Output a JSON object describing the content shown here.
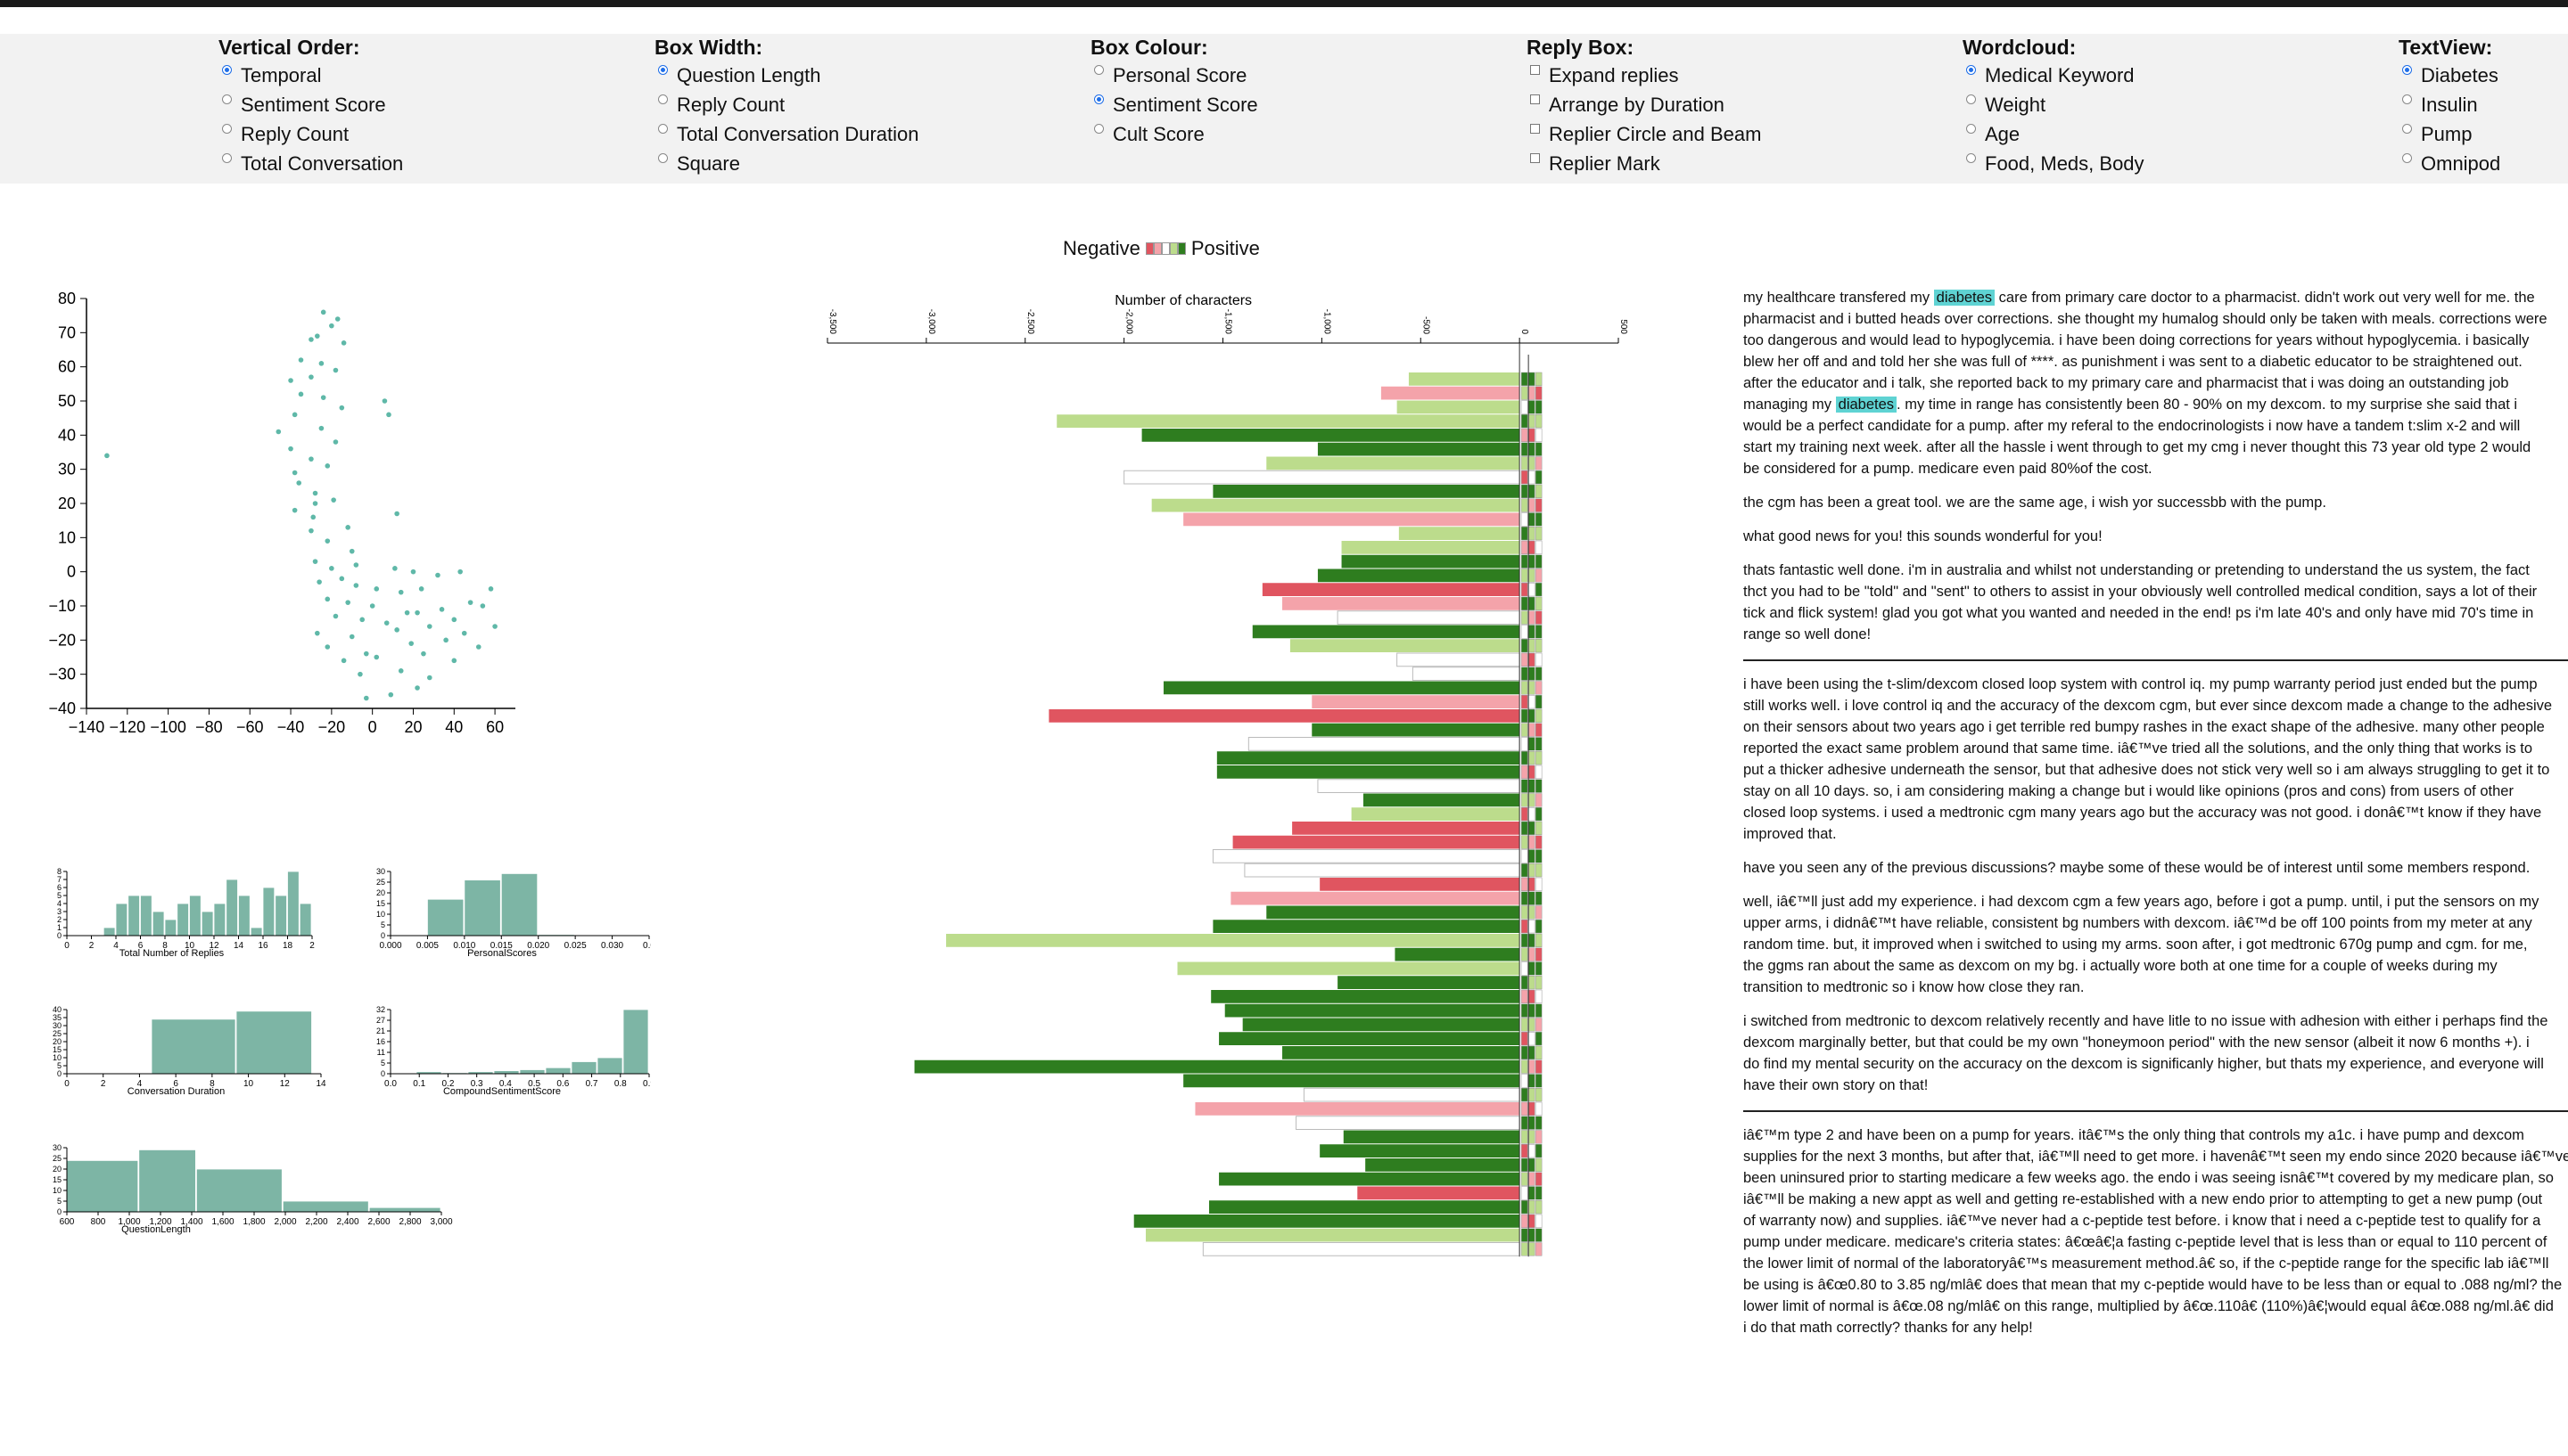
{
  "controls": [
    {
      "id": "vertical-order",
      "title": "Vertical Order:",
      "type": "radio",
      "x": 245,
      "options": [
        {
          "label": "Temporal",
          "checked": true
        },
        {
          "label": "Sentiment Score",
          "checked": false
        },
        {
          "label": "Reply Count",
          "checked": false
        },
        {
          "label": "Total Conversation",
          "checked": false
        }
      ]
    },
    {
      "id": "box-width",
      "title": "Box Width:",
      "type": "radio",
      "x": 734,
      "options": [
        {
          "label": "Question Length",
          "checked": true
        },
        {
          "label": "Reply Count",
          "checked": false
        },
        {
          "label": "Total Conversation Duration",
          "checked": false
        },
        {
          "label": "Square",
          "checked": false
        }
      ]
    },
    {
      "id": "box-colour",
      "title": "Box Colour:",
      "type": "radio",
      "x": 1223,
      "options": [
        {
          "label": "Personal Score",
          "checked": false
        },
        {
          "label": "Sentiment Score",
          "checked": true
        },
        {
          "label": "Cult Score",
          "checked": false
        }
      ]
    },
    {
      "id": "reply-box",
      "title": "Reply Box:",
      "type": "checkbox",
      "x": 1712,
      "options": [
        {
          "label": "Expand replies",
          "checked": false
        },
        {
          "label": "Arrange by Duration",
          "checked": false
        },
        {
          "label": "Replier Circle and Beam",
          "checked": false
        },
        {
          "label": "Replier Mark",
          "checked": false
        }
      ]
    },
    {
      "id": "wordcloud",
      "title": "Wordcloud:",
      "type": "radio",
      "x": 2201,
      "options": [
        {
          "label": "Medical Keyword",
          "checked": true
        },
        {
          "label": "Weight",
          "checked": false
        },
        {
          "label": "Age",
          "checked": false
        },
        {
          "label": "Food, Meds, Body",
          "checked": false
        }
      ]
    },
    {
      "id": "textview",
      "title": "TextView:",
      "type": "radio",
      "x": 2690,
      "options": [
        {
          "label": "Diabetes",
          "checked": true
        },
        {
          "label": "Insulin",
          "checked": false
        },
        {
          "label": "Pump",
          "checked": false
        },
        {
          "label": "Omnipod",
          "checked": false
        }
      ]
    }
  ],
  "legend": {
    "negative": "Negative",
    "positive": "Positive",
    "swatches": [
      "#e05560",
      "#f4a3aa",
      "#ffffff",
      "#bcdc8c",
      "#2e7d1f"
    ]
  },
  "colors": {
    "scatter": "#5fb8a8",
    "hist": "#7db5a5",
    "dark_green": "#2e7d1f",
    "light_green": "#bcdc8c",
    "red": "#e05560",
    "pink": "#f4a3aa",
    "highlight": "#5fd3d3"
  },
  "chart_data": [
    {
      "type": "scatter",
      "title": "",
      "xlim": [
        -140,
        70
      ],
      "ylim": [
        -40,
        80
      ],
      "xticks": [
        -140,
        -120,
        -100,
        -80,
        -60,
        -40,
        -20,
        0,
        20,
        40,
        60
      ],
      "yticks": [
        -40,
        -30,
        -20,
        -10,
        0,
        10,
        20,
        30,
        40,
        50,
        60,
        70,
        80
      ],
      "x": [
        -130,
        -24,
        -17,
        -20,
        -27,
        -30,
        -14,
        -35,
        -25,
        -40,
        -30,
        -18,
        -35,
        -24,
        -15,
        -46,
        -38,
        -25,
        -18,
        -40,
        -30,
        -38,
        -22,
        -36,
        -28,
        6,
        8,
        -38,
        -28,
        -19,
        -29,
        -12,
        -30,
        -22,
        -10,
        -28,
        12,
        -20,
        -8,
        11,
        20,
        32,
        43,
        -26,
        -15,
        -8,
        2,
        14,
        24,
        -22,
        -12,
        0,
        17,
        34,
        48,
        58,
        -18,
        -5,
        7,
        22,
        40,
        54,
        -27,
        -10,
        12,
        28,
        45,
        60,
        -22,
        -3,
        19,
        36,
        52,
        -14,
        2,
        25,
        40,
        -6,
        14,
        28,
        -3,
        9,
        22
      ],
      "y": [
        34,
        76,
        74,
        72,
        69,
        68,
        67,
        62,
        61,
        56,
        57,
        59,
        52,
        51,
        48,
        41,
        46,
        42,
        38,
        36,
        33,
        29,
        31,
        26,
        23,
        50,
        46,
        18,
        20,
        21,
        16,
        13,
        12,
        9,
        6,
        3,
        17,
        1,
        2,
        1,
        0,
        -1,
        0,
        -3,
        -2,
        -4,
        -5,
        -6,
        -5,
        -8,
        -9,
        -10,
        -12,
        -11,
        -9,
        -5,
        -13,
        -14,
        -15,
        -12,
        -14,
        -10,
        -18,
        -19,
        -17,
        -16,
        -18,
        -16,
        -22,
        -24,
        -21,
        -20,
        -22,
        -26,
        -25,
        -24,
        -26,
        -30,
        -29,
        -31,
        -37,
        -36,
        -34
      ]
    },
    {
      "type": "bar",
      "xlabel": "Total Number of Replies",
      "xlim": [
        0,
        20
      ],
      "ylim": [
        0,
        8
      ],
      "xticks": [
        "0",
        "2",
        "4",
        "6",
        "8",
        "10",
        "12",
        "14",
        "16",
        "18",
        "2"
      ],
      "bins": [
        [
          3,
          4,
          1
        ],
        [
          4,
          5,
          4
        ],
        [
          5,
          6,
          5
        ],
        [
          6,
          7,
          5
        ],
        [
          7,
          8,
          3
        ],
        [
          8,
          9,
          2
        ],
        [
          9,
          10,
          4
        ],
        [
          10,
          11,
          5
        ],
        [
          11,
          12,
          3
        ],
        [
          12,
          13,
          4
        ],
        [
          13,
          14,
          7
        ],
        [
          14,
          15,
          5
        ],
        [
          15,
          16,
          1
        ],
        [
          16,
          17,
          6
        ],
        [
          17,
          18,
          5
        ],
        [
          18,
          19,
          8
        ],
        [
          19,
          20,
          4
        ]
      ]
    },
    {
      "type": "bar",
      "xlabel": "PersonalScores",
      "xlim": [
        0,
        0.035
      ],
      "ylim": [
        0,
        30
      ],
      "xticks": [
        "0.000",
        "0.005",
        "0.010",
        "0.015",
        "0.020",
        "0.025",
        "0.030",
        "0.0"
      ],
      "bins": [
        [
          0.0,
          0.0025,
          0.3
        ],
        [
          0.005,
          0.01,
          17
        ],
        [
          0.01,
          0.015,
          26
        ],
        [
          0.015,
          0.02,
          29
        ],
        [
          0.02,
          0.025,
          0.5
        ],
        [
          0.025,
          0.03,
          0.3
        ]
      ]
    },
    {
      "type": "bar",
      "xlabel": "Conversation Duration",
      "xlim": [
        0,
        15
      ],
      "ylim": [
        0,
        40
      ],
      "xticks": [
        "0",
        "2",
        "4",
        "6",
        "8",
        "10",
        "12",
        "14"
      ],
      "bins": [
        [
          5,
          10,
          34
        ],
        [
          10,
          14.5,
          39
        ]
      ]
    },
    {
      "type": "bar",
      "xlabel": "CompoundSentimentScore",
      "xlim": [
        0,
        1
      ],
      "ylim": [
        0,
        32
      ],
      "xticks": [
        "0.0",
        "0.1",
        "0.2",
        "0.3",
        "0.4",
        "0.5",
        "0.6",
        "0.7",
        "0.8",
        "0.9"
      ],
      "bins": [
        [
          0.1,
          0.2,
          1
        ],
        [
          0.2,
          0.3,
          0.5
        ],
        [
          0.3,
          0.4,
          1
        ],
        [
          0.4,
          0.5,
          1.5
        ],
        [
          0.5,
          0.6,
          2
        ],
        [
          0.6,
          0.7,
          3
        ],
        [
          0.7,
          0.8,
          6
        ],
        [
          0.8,
          0.9,
          8
        ],
        [
          0.9,
          1.0,
          32
        ]
      ]
    },
    {
      "type": "bar",
      "xlabel": "QuestionLength",
      "xlim": [
        500,
        3100
      ],
      "ylim": [
        0,
        30
      ],
      "xticks": [
        "600",
        "800",
        "1,000",
        "1,200",
        "1,400",
        "1,600",
        "1,800",
        "2,000",
        "2,200",
        "2,400",
        "2,600",
        "2,800",
        "3,000"
      ],
      "bins": [
        [
          500,
          1000,
          24
        ],
        [
          1000,
          1400,
          29
        ],
        [
          1400,
          2000,
          20
        ],
        [
          2000,
          2600,
          5
        ],
        [
          2600,
          3100,
          2
        ]
      ]
    },
    {
      "type": "bar",
      "orientation": "horizontal",
      "xlabel": "Number of characters",
      "xlim": [
        -3500,
        500
      ],
      "xticks": [
        "-3,500",
        "-3,000",
        "-2,500",
        "-2,000",
        "-1,500",
        "-1,000",
        "-500",
        "0",
        "500"
      ],
      "values": [
        -560,
        -700,
        -620,
        -2340,
        -1910,
        -1020,
        -1280,
        -2000,
        -1550,
        -1860,
        -1700,
        -610,
        -900,
        -900,
        -1020,
        -1300,
        -1200,
        -920,
        -1350,
        -1160,
        -620,
        -540,
        -1800,
        -1050,
        -2380,
        -1050,
        -1370,
        -1530,
        -1530,
        -1020,
        -790,
        -850,
        -1150,
        -1450,
        -1550,
        -1390,
        -1010,
        -1460,
        -1280,
        -1550,
        -2900,
        -630,
        -1730,
        -920,
        -1560,
        -1490,
        -1400,
        -1520,
        -1200,
        -3060,
        -1700,
        -1090,
        -1640,
        -1130,
        -890,
        -1010,
        -780,
        -1520,
        -820,
        -1570,
        -1950,
        -1890,
        -1600
      ],
      "colors": [
        "lg",
        "pk",
        "lg",
        "lg",
        "dg",
        "dg",
        "lg",
        "wh",
        "dg",
        "lg",
        "pk",
        "lg",
        "lg",
        "dg",
        "dg",
        "rd",
        "pk",
        "wh",
        "dg",
        "lg",
        "wh",
        "wh",
        "dg",
        "pk",
        "rd",
        "dg",
        "wh",
        "dg",
        "dg",
        "wh",
        "dg",
        "lg",
        "rd",
        "rd",
        "wh",
        "wh",
        "rd",
        "pk",
        "dg",
        "dg",
        "lg",
        "dg",
        "lg",
        "dg",
        "dg",
        "dg",
        "dg",
        "dg",
        "dg",
        "dg",
        "dg",
        "wh",
        "pk",
        "wh",
        "dg",
        "dg",
        "dg",
        "dg",
        "rd",
        "dg",
        "dg",
        "lg",
        "wh"
      ]
    }
  ],
  "textview": {
    "posts": [
      {
        "question": [
          [
            "my healthcare transfered my ",
            "diabetes",
            " care from primary care doctor to a pharmacist. didn't work out very well for me. the"
          ],
          [
            "pharmacist and i butted heads over corrections. she thought my humalog should only be taken with meals. corrections were"
          ],
          [
            "too dangerous and would lead to hypoglycemia. i have been doing corrections for years without hypoglycemia. i basically"
          ],
          [
            "blew her off and and told her she was full of ****. as punishment i was sent to a diabetic educator to be straightened out."
          ],
          [
            "after the educator and i talk, she reported back to my primary care and pharmacist that i was doing an outstanding job"
          ],
          [
            "managing my ",
            "diabetes",
            ". my time in range has consistently been 80 - 90% on my dexcom. to my surprise she said that i"
          ],
          [
            "would be a perfect candidate for a pump. after my referal to the endocrinologists i now have a tandem t:slim x-2 and will"
          ],
          [
            "start my training next week. after all the hassle i went through to get my cmg i never thought this 73 year old type 2 would"
          ],
          [
            "be considered for a pump. medicare even paid 80%of the cost."
          ]
        ],
        "replies": [
          [
            [
              "the cgm has been a great tool. we are the same age, i wish yor successbb with the pump."
            ]
          ],
          [
            [
              "what good news for you! this sounds wonderful for you!"
            ]
          ],
          [
            [
              "thats fantastic well done. i'm in australia and whilst not understanding or pretending to understand the us system, the fact"
            ],
            [
              "thct you had to be \"told\" and \"sent\" to others to assist in your obviously well controlled medical condition, says a lot of their"
            ],
            [
              "tick and flick system! glad you got what you wanted and needed in the end! ps i'm late 40's and only have mid 70's time in"
            ],
            [
              "range so well done!"
            ]
          ]
        ]
      },
      {
        "question": [
          [
            "i have been using the t-slim/dexcom closed loop system with control iq. my pump warranty period just ended but the pump"
          ],
          [
            "still works well. i love control iq and the accuracy of the dexcom cgm, but ever since dexcom made a change to the adhesive"
          ],
          [
            "on their sensors about two years ago i get terrible red bumpy rashes in the exact shape of the adhesive. many other people"
          ],
          [
            "reported the exact same problem around that same time. iâ€™ve tried all the solutions, and the only thing that works is to"
          ],
          [
            "put a thicker adhesive underneath the sensor, but that adhesive does not stick very well so i am always struggling to get it to"
          ],
          [
            "stay on all 10 days. so, i am considering making a change but i would like opinions (pros and cons) from users of other"
          ],
          [
            "closed loop systems. i used a medtronic cgm many years ago but the accuracy was not good. i donâ€™t know if they have"
          ],
          [
            "improved that."
          ]
        ],
        "replies": [
          [
            [
              "have you seen any of the previous discussions? maybe some of these would be of interest until some members respond."
            ]
          ],
          [
            [
              "well, iâ€™ll just add my experience. i had dexcom cgm a few years ago, before i got a pump. until, i put the sensors on my"
            ],
            [
              "upper arms, i didnâ€™t have reliable, consistent bg numbers with dexcom. iâ€™d be off 100 points from my meter at any"
            ],
            [
              "random time. but, it improved when i switched to using my arms. soon after, i got medtronic 670g pump and cgm. for me,"
            ],
            [
              "the ggms ran about the same as dexcom on my bg. i actually wore both at one time for a couple of weeks during my"
            ],
            [
              "transition to medtronic so i know how close they ran."
            ]
          ],
          [
            [
              "i switched from medtronic to dexcom relatively recently and have litle to no issue with adhesion with either i perhaps find the"
            ],
            [
              "dexcom marginally better, but that could be my own \"honeymoon period\" with the new sensor (albeit it now 6 months +). i"
            ],
            [
              "do find my mental security on the accuracy on the dexcom is significanly higher, but thats my experience, and everyone will"
            ],
            [
              "have their own story on that!"
            ]
          ]
        ]
      },
      {
        "question": [
          [
            "iâ€™m type 2 and have been on a pump for years. itâ€™s the only thing that controls my a1c. i have pump and dexcom"
          ],
          [
            "supplies for the next 3 months, but after that, iâ€™ll need to get more. i havenâ€™t seen my endo since 2020 because iâ€™ve"
          ],
          [
            "been uninsured prior to starting medicare a few weeks ago. the endo i was seeing isnâ€™t covered by my medicare plan, so"
          ],
          [
            "iâ€™ll be making a new appt as well and getting re-established with a new endo prior to attempting to get a new pump (out"
          ],
          [
            "of warranty now) and supplies. iâ€™ve never had a c-peptide test before. i know that i need a c-peptide test to qualify for a"
          ],
          [
            "pump under medicare. medicare's criteria states: â€œâ€¦a fasting c-peptide level that is less than or equal to 110 percent of"
          ],
          [
            "the lower limit of normal of the laboratoryâ€™s measurement method.â€ so, if the c-peptide range for the specific lab iâ€™ll"
          ],
          [
            "be using is â€œ0.80 to 3.85 ng/mlâ€ does that mean that my c-peptide would have to be less than or equal to .088 ng/ml? the"
          ],
          [
            "lower limit of normal is â€œ.08 ng/mlâ€ on this range, multiplied by â€œ.110â€ (110%)â€¦would equal â€œ.088 ng/ml.â€ did"
          ],
          [
            "i do that math correctly? thanks for any help!"
          ]
        ],
        "replies": []
      }
    ]
  }
}
